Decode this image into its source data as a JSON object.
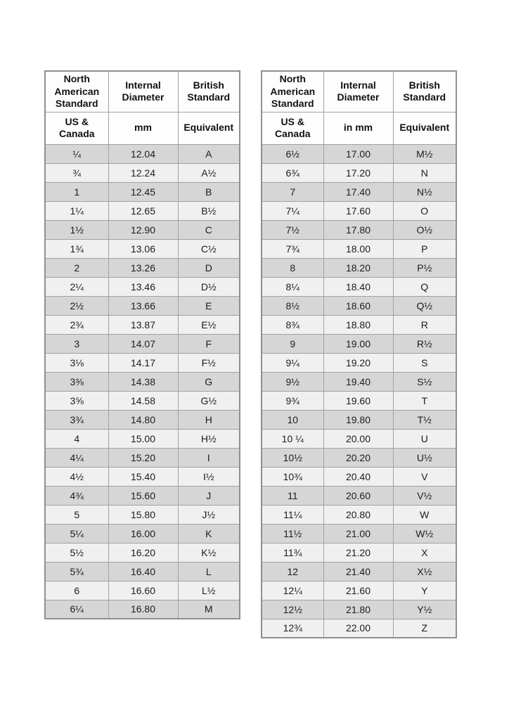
{
  "colors": {
    "row_dark": "#d6d6d6",
    "row_light": "#f0f0f0",
    "header_bg": "#fdfdfd",
    "border": "#a1a1a1",
    "border_outer": "#8f8f8f",
    "text": "#1c1c1c"
  },
  "tables": [
    {
      "headers": [
        "North American Standard",
        "Internal Diameter",
        "British Standard"
      ],
      "subheaders": [
        "US & Canada",
        "mm",
        "Equivalent"
      ],
      "rows": [
        [
          "¼",
          "12.04",
          "A"
        ],
        [
          "¾",
          "12.24",
          "A½"
        ],
        [
          "1",
          "12.45",
          "B"
        ],
        [
          "1¼",
          "12.65",
          "B½"
        ],
        [
          "1½",
          "12.90",
          "C"
        ],
        [
          "1¾",
          "13.06",
          "C½"
        ],
        [
          "2",
          "13.26",
          "D"
        ],
        [
          "2¼",
          "13.46",
          "D½"
        ],
        [
          "2½",
          "13.66",
          "E"
        ],
        [
          "2¾",
          "13.87",
          "E½"
        ],
        [
          "3",
          "14.07",
          "F"
        ],
        [
          "3⅛",
          "14.17",
          "F½"
        ],
        [
          "3⅜",
          "14.38",
          "G"
        ],
        [
          "3⅝",
          "14.58",
          "G½"
        ],
        [
          "3¾",
          "14.80",
          "H"
        ],
        [
          "4",
          "15.00",
          "H½"
        ],
        [
          "4¼",
          "15.20",
          "I"
        ],
        [
          "4½",
          "15.40",
          "I½"
        ],
        [
          "4¾",
          "15.60",
          "J"
        ],
        [
          "5",
          "15.80",
          "J½"
        ],
        [
          "5¼",
          "16.00",
          "K"
        ],
        [
          "5½",
          "16.20",
          "K½"
        ],
        [
          "5¾",
          "16.40",
          "L"
        ],
        [
          "6",
          "16.60",
          "L½"
        ],
        [
          "6¼",
          "16.80",
          "M"
        ]
      ]
    },
    {
      "headers": [
        "North American Standard",
        "Internal Diameter",
        "British Standard"
      ],
      "subheaders": [
        "US & Canada",
        "in mm",
        "Equivalent"
      ],
      "rows": [
        [
          "6½",
          "17.00",
          "M½"
        ],
        [
          "6¾",
          "17.20",
          "N"
        ],
        [
          "7",
          "17.40",
          "N½"
        ],
        [
          "7¼",
          "17.60",
          "O"
        ],
        [
          "7½",
          "17.80",
          "O½"
        ],
        [
          "7¾",
          "18.00",
          "P"
        ],
        [
          "8",
          "18.20",
          "P½"
        ],
        [
          "8¼",
          "18.40",
          "Q"
        ],
        [
          "8½",
          "18.60",
          "Q½"
        ],
        [
          "8¾",
          "18.80",
          "R"
        ],
        [
          "9",
          "19.00",
          "R½"
        ],
        [
          "9¼",
          "19.20",
          "S"
        ],
        [
          "9½",
          "19.40",
          "S½"
        ],
        [
          "9¾",
          "19.60",
          "T"
        ],
        [
          "10",
          "19.80",
          "T½"
        ],
        [
          "10 ¼",
          "20.00",
          "U"
        ],
        [
          "10½",
          "20.20",
          "U½"
        ],
        [
          "10¾",
          "20.40",
          "V"
        ],
        [
          "11",
          "20.60",
          "V½"
        ],
        [
          "11¼",
          "20.80",
          "W"
        ],
        [
          "11½",
          "21.00",
          "W½"
        ],
        [
          "11¾",
          "21.20",
          "X"
        ],
        [
          "12",
          "21.40",
          "X½"
        ],
        [
          "12¼",
          "21.60",
          "Y"
        ],
        [
          "12½",
          "21.80",
          "Y½"
        ],
        [
          "12¾",
          "22.00",
          "Z"
        ]
      ]
    }
  ]
}
